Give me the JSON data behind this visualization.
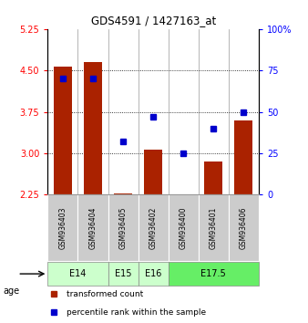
{
  "title": "GDS4591 / 1427163_at",
  "samples": [
    "GSM936403",
    "GSM936404",
    "GSM936405",
    "GSM936402",
    "GSM936400",
    "GSM936401",
    "GSM936406"
  ],
  "red_values": [
    4.57,
    4.65,
    2.28,
    3.07,
    2.2,
    2.85,
    3.6
  ],
  "blue_values": [
    70,
    70,
    32,
    47,
    25,
    40,
    50
  ],
  "ylim_left": [
    2.25,
    5.25
  ],
  "ylim_right": [
    0,
    100
  ],
  "yticks_left": [
    2.25,
    3.0,
    3.75,
    4.5,
    5.25
  ],
  "yticks_right": [
    0,
    25,
    50,
    75,
    100
  ],
  "age_groups": [
    {
      "label": "E14",
      "indices": [
        0,
        1
      ],
      "color": "#ccffcc"
    },
    {
      "label": "E15",
      "indices": [
        2
      ],
      "color": "#ccffcc"
    },
    {
      "label": "E16",
      "indices": [
        3
      ],
      "color": "#ccffcc"
    },
    {
      "label": "E17.5",
      "indices": [
        4,
        5,
        6
      ],
      "color": "#66ee66"
    }
  ],
  "bar_color": "#aa2200",
  "dot_color": "#0000cc",
  "bar_bottom": 2.25,
  "bar_width": 0.6,
  "grid_lines": [
    3.0,
    3.75,
    4.5
  ],
  "background_color": "#ffffff",
  "sample_box_color": "#cccccc"
}
